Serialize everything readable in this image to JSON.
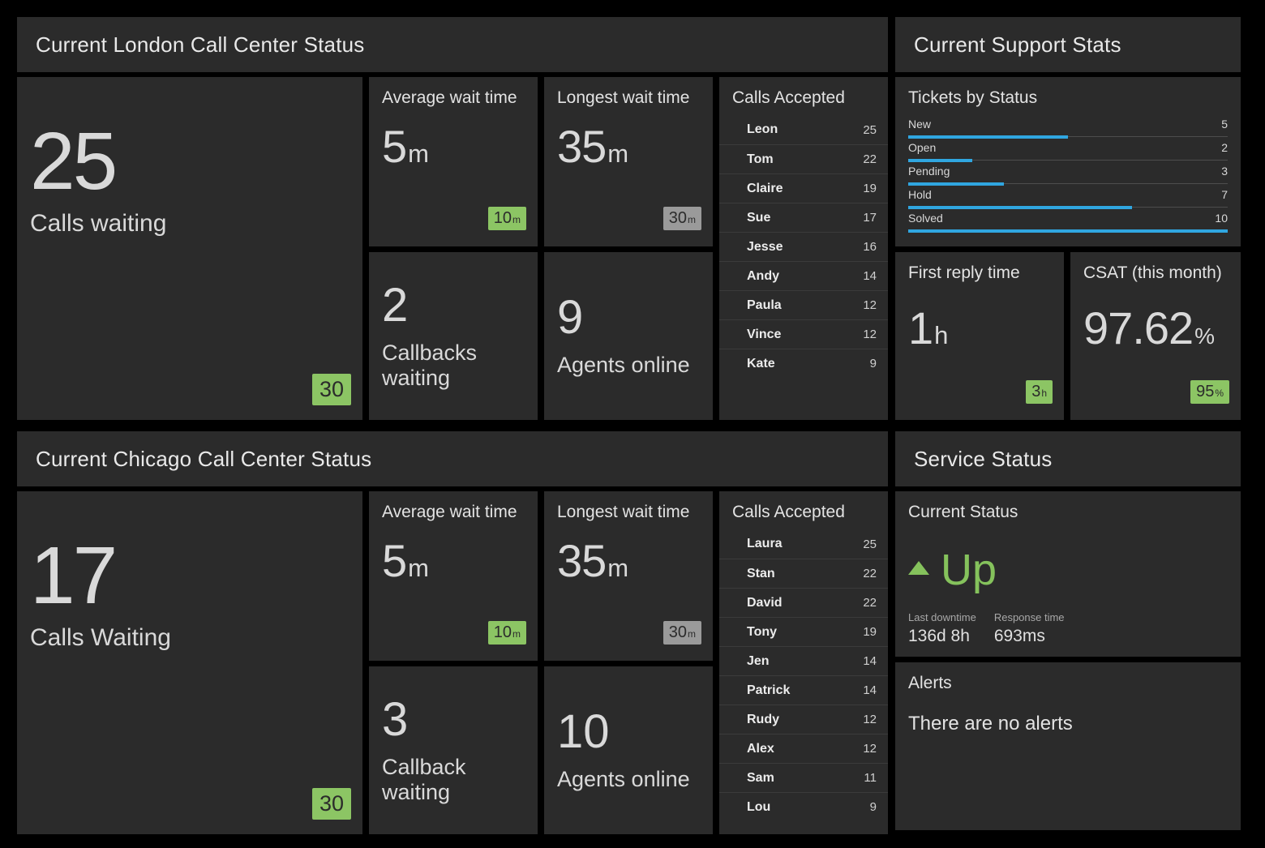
{
  "colors": {
    "page_bg": "#000000",
    "tile_bg": "#2b2b2b",
    "accent_green": "#8cc564",
    "status_green": "#85c25c",
    "bar_blue": "#30a6e0",
    "badge_gray": "#9a9a9a"
  },
  "london": {
    "header": "Current London Call Center Status",
    "calls_waiting": {
      "value": "25",
      "label": "Calls waiting",
      "goal_badge": "30"
    },
    "average_wait": {
      "title": "Average wait time",
      "value": "5",
      "unit": "m",
      "goal_value": "10",
      "goal_unit": "m"
    },
    "longest_wait": {
      "title": "Longest wait time",
      "value": "35",
      "unit": "m",
      "goal_value": "30",
      "goal_unit": "m"
    },
    "callbacks": {
      "value": "2",
      "label": "Callbacks waiting"
    },
    "agents_online": {
      "value": "9",
      "label": "Agents online"
    },
    "calls_accepted": {
      "title": "Calls Accepted",
      "agents": [
        {
          "name": "Leon",
          "value": "25"
        },
        {
          "name": "Tom",
          "value": "22"
        },
        {
          "name": "Claire",
          "value": "19"
        },
        {
          "name": "Sue",
          "value": "17"
        },
        {
          "name": "Jesse",
          "value": "16"
        },
        {
          "name": "Andy",
          "value": "14"
        },
        {
          "name": "Paula",
          "value": "12"
        },
        {
          "name": "Vince",
          "value": "12"
        },
        {
          "name": "Kate",
          "value": "9"
        }
      ]
    }
  },
  "chicago": {
    "header": "Current Chicago Call Center Status",
    "calls_waiting": {
      "value": "17",
      "label": "Calls Waiting",
      "goal_badge": "30"
    },
    "average_wait": {
      "title": "Average wait time",
      "value": "5",
      "unit": "m",
      "goal_value": "10",
      "goal_unit": "m"
    },
    "longest_wait": {
      "title": "Longest wait time",
      "value": "35",
      "unit": "m",
      "goal_value": "30",
      "goal_unit": "m"
    },
    "callbacks": {
      "value": "3",
      "label": "Callback waiting"
    },
    "agents_online": {
      "value": "10",
      "label": "Agents online"
    },
    "calls_accepted": {
      "title": "Calls Accepted",
      "agents": [
        {
          "name": "Laura",
          "value": "25"
        },
        {
          "name": "Stan",
          "value": "22"
        },
        {
          "name": "David",
          "value": "22"
        },
        {
          "name": "Tony",
          "value": "19"
        },
        {
          "name": "Jen",
          "value": "14"
        },
        {
          "name": "Patrick",
          "value": "14"
        },
        {
          "name": "Rudy",
          "value": "12"
        },
        {
          "name": "Alex",
          "value": "12"
        },
        {
          "name": "Sam",
          "value": "11"
        },
        {
          "name": "Lou",
          "value": "9"
        }
      ]
    }
  },
  "support": {
    "header": "Current Support Stats",
    "tickets": {
      "title": "Tickets by Status",
      "max": 10,
      "rows": [
        {
          "label": "New",
          "value": 5
        },
        {
          "label": "Open",
          "value": 2
        },
        {
          "label": "Pending",
          "value": 3
        },
        {
          "label": "Hold",
          "value": 7
        },
        {
          "label": "Solved",
          "value": 10
        }
      ]
    },
    "first_reply": {
      "title": "First reply time",
      "value": "1",
      "unit": "h",
      "goal_value": "3",
      "goal_unit": "h"
    },
    "csat": {
      "title": "CSAT (this month)",
      "value": "97.62",
      "unit": "%",
      "goal_value": "95",
      "goal_unit": "%"
    }
  },
  "service": {
    "header": "Service Status",
    "current_status": {
      "title": "Current Status",
      "status": "Up",
      "last_downtime_label": "Last downtime",
      "last_downtime_value": "136d 8h",
      "response_time_label": "Response time",
      "response_time_value": "693ms"
    },
    "alerts": {
      "title": "Alerts",
      "message": "There are no alerts"
    }
  },
  "chart_data": {
    "type": "bar",
    "title": "Tickets by Status",
    "orientation": "horizontal",
    "categories": [
      "New",
      "Open",
      "Pending",
      "Hold",
      "Solved"
    ],
    "values": [
      5,
      2,
      3,
      7,
      10
    ],
    "xlim": [
      0,
      10
    ],
    "bar_color": "#30a6e0",
    "grid": false,
    "legend": "none"
  }
}
